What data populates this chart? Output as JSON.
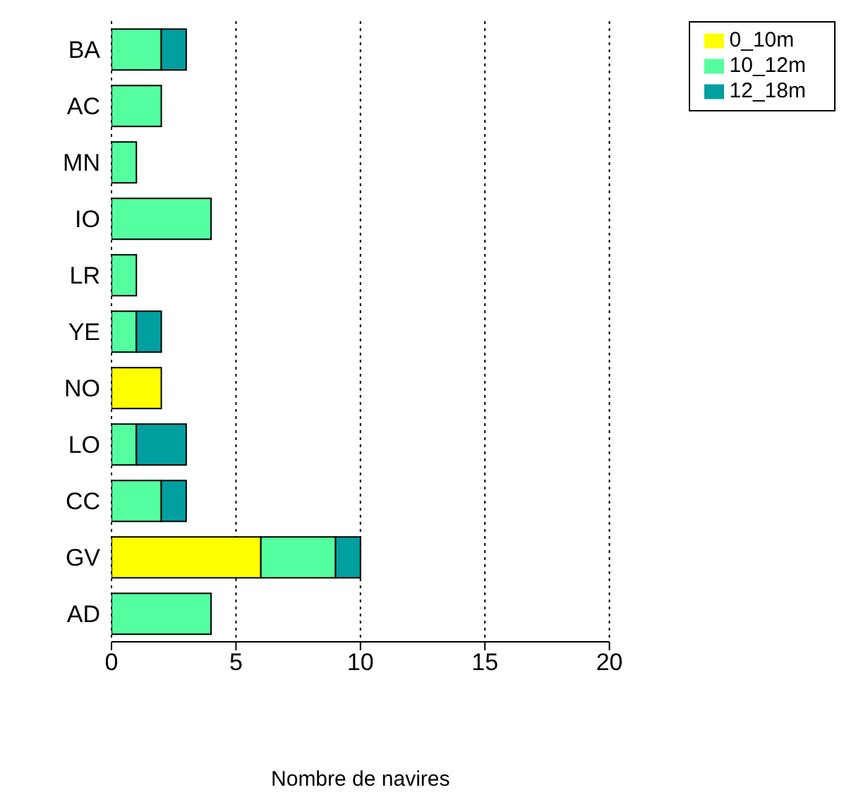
{
  "chart_data": {
    "type": "bar",
    "orientation": "horizontal",
    "stacked": true,
    "xlabel": "Nombre de navires",
    "categories": [
      "BA",
      "AC",
      "MN",
      "IO",
      "LR",
      "YE",
      "NO",
      "LO",
      "CC",
      "GV",
      "AD"
    ],
    "series": [
      {
        "name": "0_10m",
        "color": "#ffff00",
        "values": [
          0,
          0,
          0,
          0,
          0,
          0,
          2,
          0,
          0,
          6,
          0
        ]
      },
      {
        "name": "10_12m",
        "color": "#54ff9f",
        "values": [
          2,
          2,
          1,
          4,
          1,
          1,
          0,
          1,
          2,
          3,
          4
        ]
      },
      {
        "name": "12_18m",
        "color": "#00a0a0",
        "values": [
          1,
          0,
          0,
          0,
          0,
          1,
          0,
          2,
          1,
          1,
          0
        ]
      }
    ],
    "xlim": [
      0,
      20
    ],
    "xticks": [
      0,
      5,
      10,
      15,
      20
    ],
    "grid": "x",
    "line_style": "dotted",
    "legend": "top right"
  }
}
